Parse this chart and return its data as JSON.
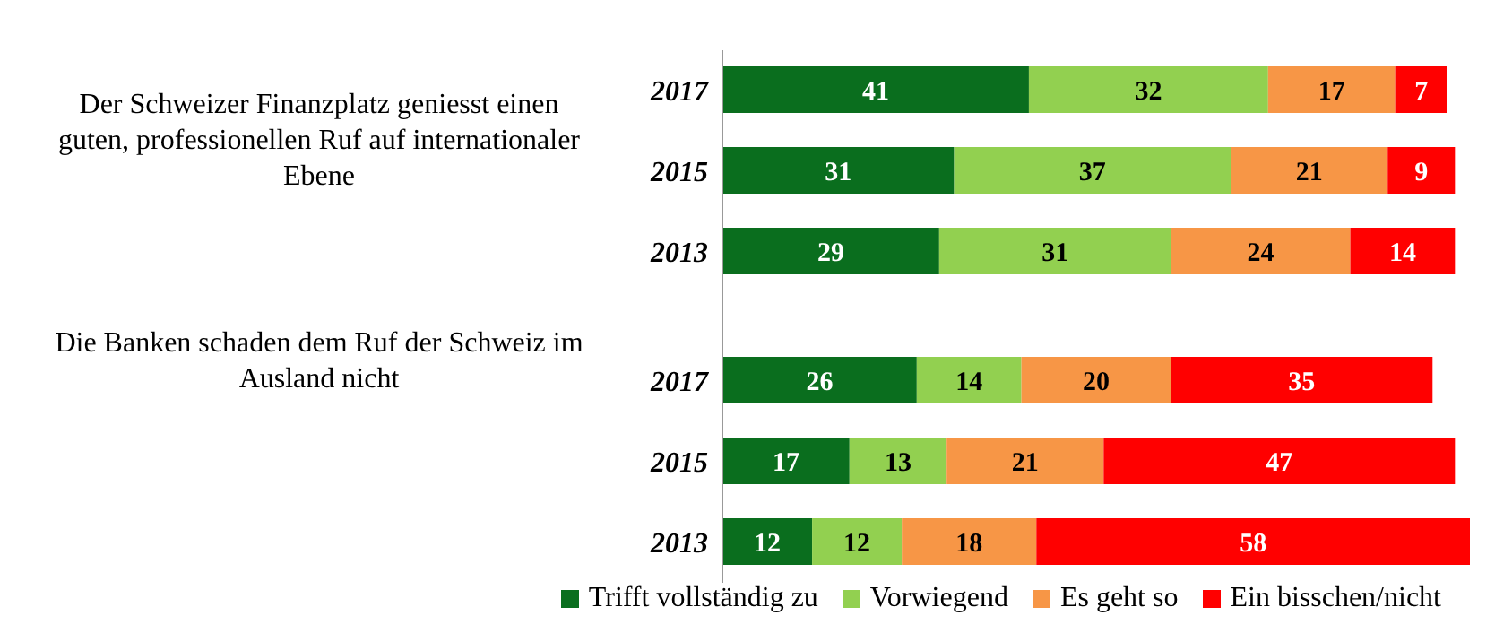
{
  "chart_data": {
    "type": "bar",
    "orientation": "horizontal",
    "stacked": true,
    "data_labels": true,
    "legend": "bottom",
    "categories": [
      "2017",
      "2015",
      "2013",
      "2017",
      "2015",
      "2013"
    ],
    "series": [
      {
        "name": "Trifft vollständig zu",
        "color": "#0a6e1e",
        "values": [
          41,
          31,
          29,
          26,
          17,
          12
        ]
      },
      {
        "name": "Vorwiegend",
        "color": "#92d050",
        "values": [
          32,
          37,
          31,
          14,
          13,
          12
        ]
      },
      {
        "name": "Es geht so",
        "color": "#f79646",
        "values": [
          17,
          21,
          24,
          20,
          21,
          18
        ]
      },
      {
        "name": "Ein bisschen/nicht",
        "color": "#ff0000",
        "values": [
          7,
          9,
          14,
          35,
          47,
          58
        ]
      }
    ],
    "annotations": [
      "Der Schweizer Finanzplatz geniesst einen guten, professionellen Ruf auf internationaler Ebene",
      "Die Banken schaden dem Ruf der Schweiz im Ausland nicht"
    ]
  }
}
